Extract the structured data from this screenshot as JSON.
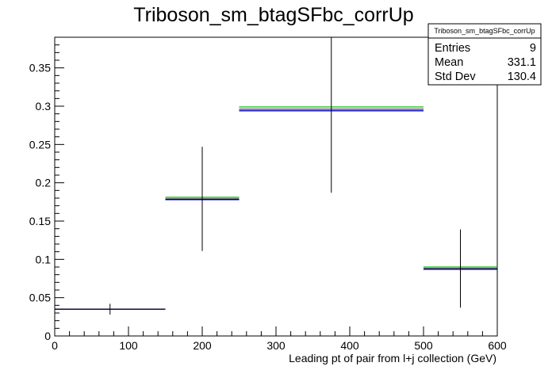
{
  "chart_data": {
    "type": "histogram",
    "title": "Triboson_sm_btagSFbc_corrUp",
    "xlabel": "Leading pt of pair from l+j collection (GeV)",
    "ylabel": "",
    "xlim": [
      0,
      600
    ],
    "ylim": [
      0,
      0.39
    ],
    "x_ticks": [
      0,
      100,
      200,
      300,
      400,
      500,
      600
    ],
    "y_ticks": [
      0,
      0.05,
      0.1,
      0.15,
      0.2,
      0.25,
      0.3,
      0.35
    ],
    "x_tick_labels": [
      "0",
      "100",
      "200",
      "300",
      "400",
      "500",
      "600"
    ],
    "y_tick_labels": [
      "0",
      "0.05",
      "0.1",
      "0.15",
      "0.2",
      "0.25",
      "0.3",
      "0.35"
    ],
    "grid": false,
    "bins": [
      {
        "x_low": 0,
        "x_high": 150,
        "center": 75,
        "value": 0.035,
        "err_low": 0.028,
        "err_high": 0.042
      },
      {
        "x_low": 150,
        "x_high": 250,
        "center": 200,
        "value": 0.179,
        "err_low": 0.111,
        "err_high": 0.247
      },
      {
        "x_low": 250,
        "x_high": 500,
        "center": 375,
        "value": 0.296,
        "err_low": 0.187,
        "err_high": 0.39
      },
      {
        "x_low": 500,
        "x_high": 600,
        "center": 550,
        "value": 0.088,
        "err_low": 0.037,
        "err_high": 0.139
      }
    ],
    "variation_lines": [
      {
        "color": "#00bb00",
        "values": [
          0.035,
          0.181,
          0.299,
          0.09
        ]
      },
      {
        "color": "#0000cc",
        "values": [
          0.035,
          0.178,
          0.294,
          0.087
        ]
      }
    ],
    "colors": {
      "main": "#000000",
      "up": "#00bb00",
      "down": "#0000cc"
    },
    "stats_box": {
      "title": "Triboson_sm_btagSFbc_corrUp",
      "rows": [
        {
          "label": "Entries",
          "value": "9"
        },
        {
          "label": "Mean",
          "value": "331.1"
        },
        {
          "label": "Std Dev",
          "value": "130.4"
        }
      ]
    }
  }
}
